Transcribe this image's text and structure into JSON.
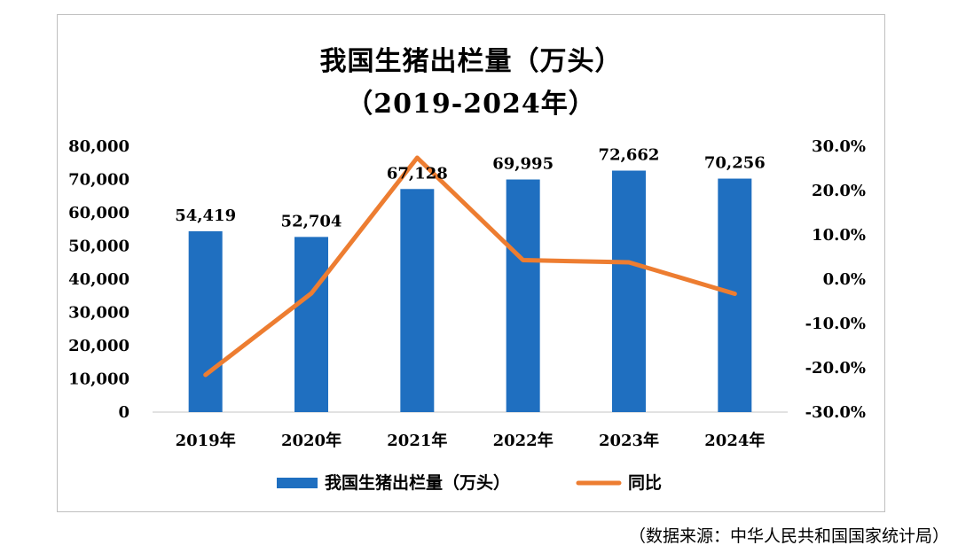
{
  "chart_title": "我国生猪出栏量（万头）",
  "chart_subtitle": "（2019-2024年）",
  "source_note": "（数据来源：中华人民共和国国家统计局）",
  "chart_data": {
    "type": "bar",
    "title": "我国生猪出栏量（万头）",
    "subtitle": "（2019-2024年）",
    "categories": [
      "2019年",
      "2020年",
      "2021年",
      "2022年",
      "2023年",
      "2024年"
    ],
    "series": [
      {
        "name": "我国生猪出栏量（万头）",
        "type": "bar",
        "axis": "left",
        "color": "#1f6fc0",
        "values": [
          54419,
          52704,
          67128,
          69995,
          72662,
          70256
        ],
        "data_labels": [
          "54,419",
          "52,704",
          "67,128",
          "69,995",
          "72,662",
          "70,256"
        ]
      },
      {
        "name": "同比",
        "type": "line",
        "axis": "right",
        "color": "#ed7d31",
        "values": [
          -21.6,
          -3.2,
          27.4,
          4.3,
          3.8,
          -3.3
        ]
      }
    ],
    "y_left": {
      "min": 0,
      "max": 80000,
      "ticks": [
        "0",
        "10,000",
        "20,000",
        "30,000",
        "40,000",
        "50,000",
        "60,000",
        "70,000",
        "80,000"
      ]
    },
    "y_right": {
      "min": -30,
      "max": 30,
      "ticks": [
        "-30.0%",
        "-20.0%",
        "-10.0%",
        "0.0%",
        "10.0%",
        "20.0%",
        "30.0%"
      ]
    },
    "legend_position": "bottom",
    "grid": false
  }
}
